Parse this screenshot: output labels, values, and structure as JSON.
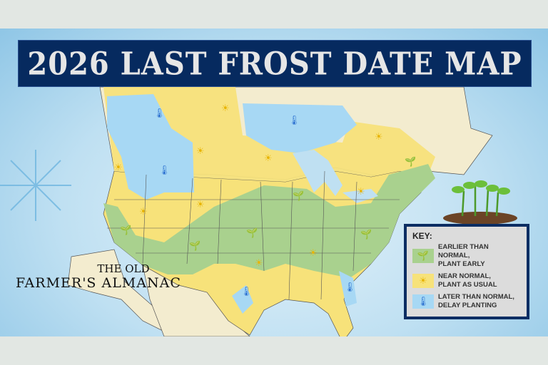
{
  "title": "2026 LAST FROST DATE MAP",
  "logo": {
    "line1": "THE OLD",
    "line2": "FARMER'S ALMANAC"
  },
  "key": {
    "title": "KEY:",
    "items": [
      {
        "line1": "EARLIER THAN NORMAL,",
        "line2": "PLANT EARLY",
        "color": "#a9d18e",
        "icon": "sprout-icon"
      },
      {
        "line1": "NEAR NORMAL,",
        "line2": "PLANT AS USUAL",
        "color": "#f7e27a",
        "icon": "sun-icon"
      },
      {
        "line1": "LATER THAN NORMAL,",
        "line2": "DELAY PLANTING",
        "color": "#a7d8f4",
        "icon": "thermometer-icon"
      }
    ]
  },
  "colors": {
    "land": "#f3eccf",
    "water": "#bfe0f2",
    "title_bg": "#062a5f",
    "earlier": "#a9d18e",
    "normal": "#f7e27a",
    "later": "#a7d8f4"
  }
}
